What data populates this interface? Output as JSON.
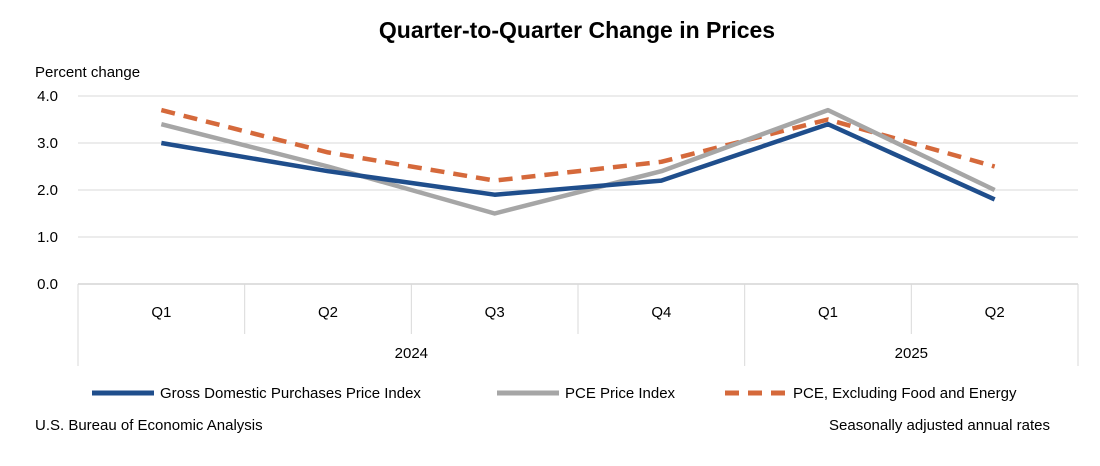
{
  "chart_data": {
    "type": "line",
    "title": "Quarter-to-Quarter Change in Prices",
    "ylabel": "Percent change",
    "xlabel": "",
    "ylim": [
      0,
      4
    ],
    "yticks": [
      0,
      1,
      2,
      3,
      4
    ],
    "ytick_labels": [
      "0.0",
      "1.0",
      "2.0",
      "3.0",
      "4.0"
    ],
    "categories": [
      "Q1",
      "Q2",
      "Q3",
      "Q4",
      "Q1",
      "Q2"
    ],
    "year_groups": [
      {
        "label": "2024",
        "count": 4
      },
      {
        "label": "2025",
        "count": 2
      }
    ],
    "grid": true,
    "legend_position": "bottom",
    "series": [
      {
        "name": "Gross Domestic Purchases Price Index",
        "values": [
          3.0,
          2.4,
          1.9,
          2.2,
          3.4,
          1.8
        ],
        "color": "#1f4e8c",
        "style": "solid"
      },
      {
        "name": "PCE Price Index",
        "values": [
          3.4,
          2.5,
          1.5,
          2.4,
          3.7,
          2.0
        ],
        "color": "#a6a6a6",
        "style": "solid"
      },
      {
        "name": "PCE, Excluding Food and Energy",
        "values": [
          3.7,
          2.8,
          2.2,
          2.6,
          3.5,
          2.5
        ],
        "color": "#d5693b",
        "style": "dashed"
      }
    ]
  },
  "footer": {
    "source": "U.S. Bureau of Economic Analysis",
    "note": "Seasonally adjusted annual rates"
  }
}
